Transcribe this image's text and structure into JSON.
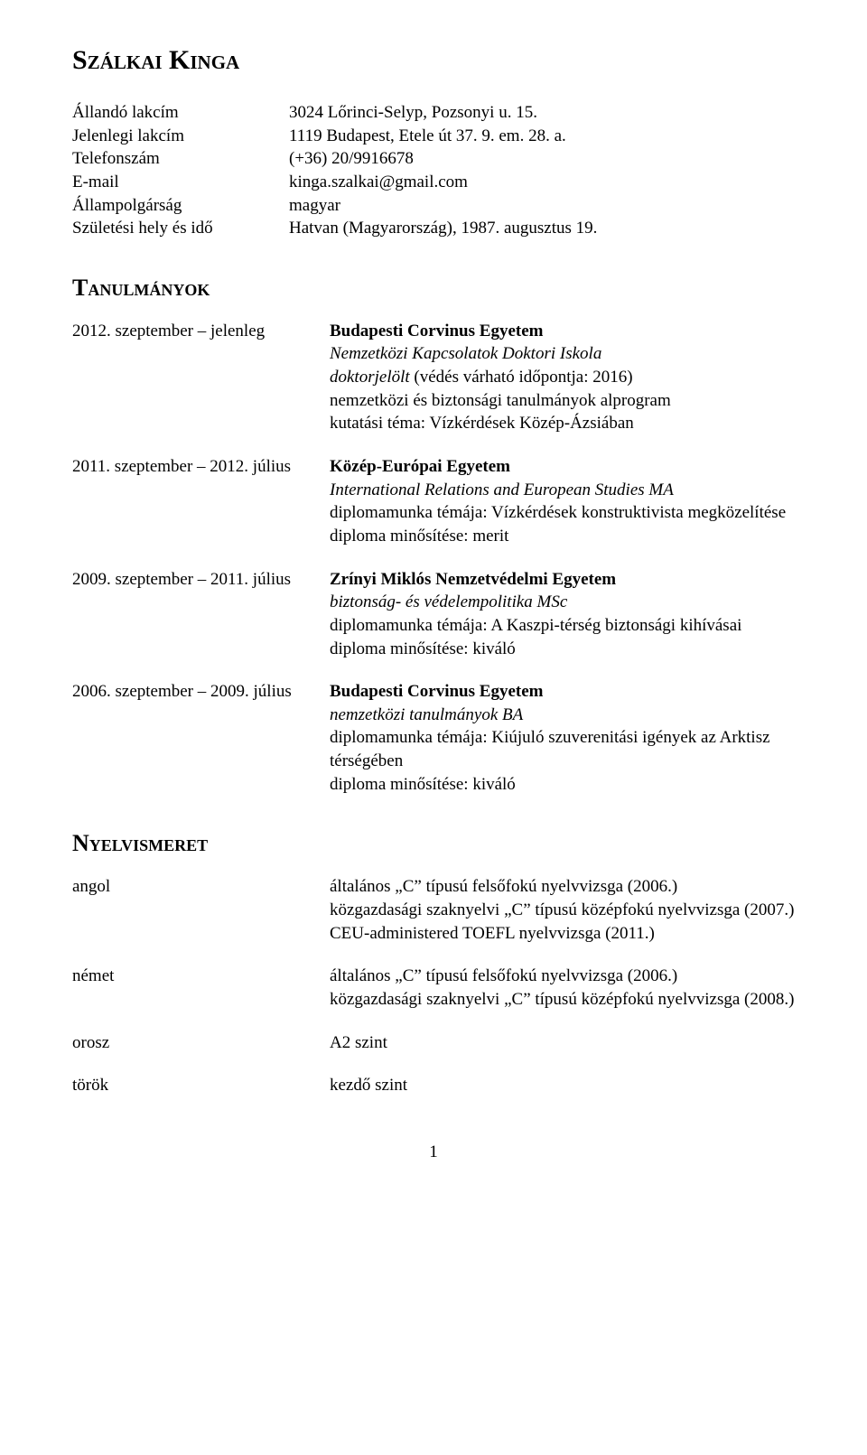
{
  "name": "Szálkai Kinga",
  "personal": {
    "rows": [
      {
        "label": "Állandó lakcím",
        "value": "3024 Lőrinci-Selyp, Pozsonyi u. 15."
      },
      {
        "label": "Jelenlegi lakcím",
        "value": "1119 Budapest, Etele út 37. 9. em. 28. a."
      },
      {
        "label": "Telefonszám",
        "value": "(+36) 20/9916678"
      },
      {
        "label": "E-mail",
        "value": "kinga.szalkai@gmail.com"
      },
      {
        "label": "Állampolgárság",
        "value": "magyar"
      },
      {
        "label": "Születési hely és idő",
        "value": "Hatvan (Magyarország), 1987. augusztus 19."
      }
    ]
  },
  "sections": {
    "education": "Tanulmányok",
    "languages": "Nyelvismeret"
  },
  "education": [
    {
      "period": "2012. szeptember – jelenleg",
      "institution": "Budapesti Corvinus Egyetem",
      "program": "Nemzetközi Kapcsolatok Doktori Iskola",
      "lines": [
        "doktorjelölt (védés várható időpontja: 2016)",
        "nemzetközi és biztonsági tanulmányok alprogram",
        "kutatási téma: Vízkérdések Közép-Ázsiában"
      ]
    },
    {
      "period": "2011. szeptember – 2012. július",
      "institution": "Közép-Európai Egyetem",
      "program": "International Relations and European Studies MA",
      "lines": [
        "diplomamunka témája: Vízkérdések konstruktivista megközelítése",
        "diploma minősítése: merit"
      ]
    },
    {
      "period": "2009. szeptember – 2011. július",
      "institution": "Zrínyi Miklós Nemzetvédelmi Egyetem",
      "program": "biztonság- és védelempolitika MSc",
      "lines": [
        "diplomamunka témája: A Kaszpi-térség biztonsági kihívásai",
        "diploma minősítése: kiváló"
      ]
    },
    {
      "period": "2006. szeptember – 2009. július",
      "institution": "Budapesti Corvinus Egyetem",
      "program": "nemzetközi tanulmányok BA",
      "lines": [
        "diplomamunka témája: Kiújuló szuverenitási igények az Arktisz térségében",
        "diploma minősítése: kiváló"
      ]
    }
  ],
  "languages": [
    {
      "name": "angol",
      "lines": [
        "általános „C” típusú felsőfokú nyelvvizsga (2006.)",
        "közgazdasági szaknyelvi „C” típusú középfokú nyelvvizsga (2007.)",
        "CEU-administered TOEFL nyelvvizsga (2011.)"
      ]
    },
    {
      "name": "német",
      "lines": [
        "általános „C” típusú felsőfokú nyelvvizsga (2006.)",
        "közgazdasági szaknyelvi „C” típusú középfokú nyelvvizsga (2008.)"
      ]
    },
    {
      "name": "orosz",
      "lines": [
        "A2 szint"
      ]
    },
    {
      "name": "török",
      "lines": [
        "kezdő szint"
      ]
    }
  ],
  "page_number": "1"
}
